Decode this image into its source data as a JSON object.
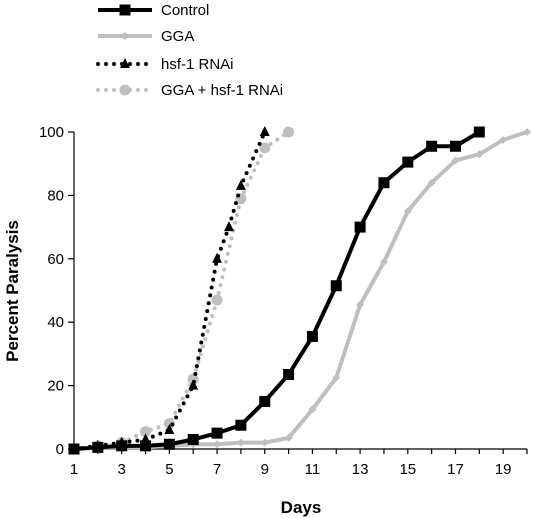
{
  "chart_data": {
    "type": "line",
    "xlabel": "Days",
    "ylabel": "Percent Paralysis",
    "xlim": [
      1,
      20
    ],
    "ylim": [
      0,
      100
    ],
    "x_ticks": [
      1,
      3,
      5,
      7,
      9,
      11,
      13,
      15,
      17,
      19
    ],
    "y_ticks": [
      0,
      20,
      40,
      60,
      80,
      100
    ],
    "grid": false,
    "legend_position": "top-left",
    "series": [
      {
        "name": "Control",
        "color": "#000000",
        "style": "solid",
        "marker": "square",
        "x": [
          1,
          2,
          3,
          4,
          5,
          6,
          7,
          8,
          9,
          10,
          11,
          12,
          13,
          14,
          15,
          16,
          17,
          18
        ],
        "y": [
          0,
          0.5,
          1,
          1,
          1.5,
          3,
          5,
          7.5,
          15,
          23.5,
          35.5,
          51.5,
          70,
          84,
          90.5,
          95.5,
          95.5,
          100
        ]
      },
      {
        "name": "GGA",
        "color": "#bfbfbf",
        "style": "solid",
        "marker": "diamond",
        "x": [
          1,
          2,
          3,
          4,
          5,
          6,
          7,
          8,
          9,
          10,
          11,
          12,
          13,
          14,
          15,
          16,
          17,
          18,
          19,
          20
        ],
        "y": [
          0,
          0.5,
          0.5,
          0.5,
          1,
          1.5,
          1.5,
          2,
          2,
          3.5,
          12.5,
          22.5,
          45.5,
          59,
          75,
          84,
          91,
          93,
          97.5,
          100
        ]
      },
      {
        "name": "hsf-1 RNAi",
        "color": "#000000",
        "style": "dotted",
        "marker": "triangle",
        "x": [
          1,
          2,
          3,
          4,
          5,
          6,
          7,
          7.5,
          8,
          9
        ],
        "y": [
          0,
          1,
          2,
          3,
          6,
          20,
          60,
          70,
          83,
          100
        ]
      },
      {
        "name": "GGA + hsf-1 RNAi",
        "color": "#bfbfbf",
        "style": "dotted",
        "marker": "circle",
        "x": [
          1,
          2,
          3,
          4,
          5,
          6,
          7,
          8,
          9,
          10
        ],
        "y": [
          0,
          1,
          2,
          5.5,
          8,
          22,
          47,
          79,
          95,
          100
        ]
      }
    ]
  }
}
